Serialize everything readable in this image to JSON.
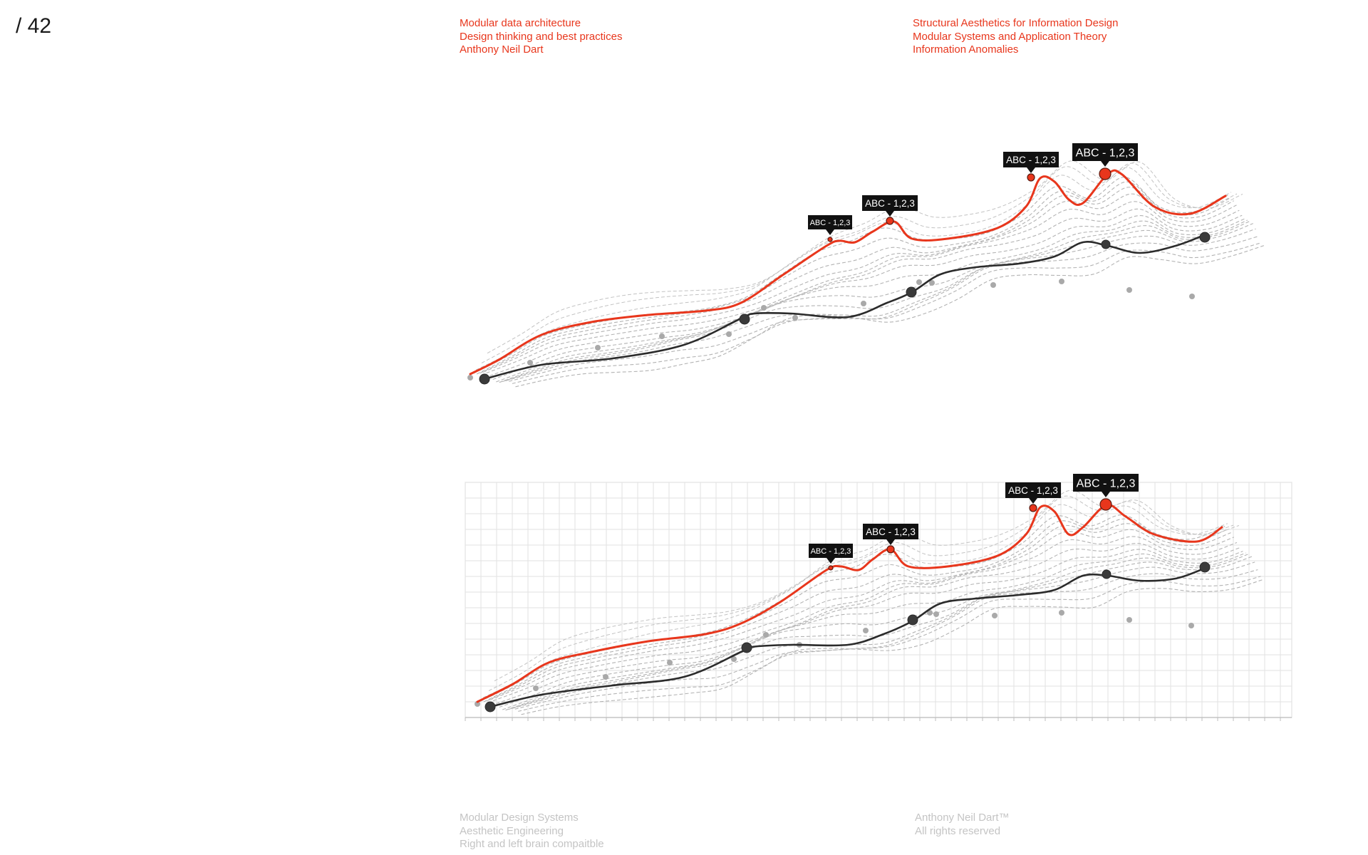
{
  "page": {
    "number": "/ 42"
  },
  "header_left": [
    "Modular data architecture",
    "Design thinking and best practices",
    "Anthony Neil Dart"
  ],
  "header_right": [
    "Structural Aesthetics for Information Design",
    "Modular Systems and Application Theory",
    "Information Anomalies"
  ],
  "footer_left": [
    "Modular Design Systems",
    "Aesthetic Engineering",
    "Right and left brain compaitble"
  ],
  "footer_right": [
    "Anthony Neil Dart™",
    "All rights reserved"
  ],
  "colors": {
    "highlight": "#e8361c",
    "primary": "#2b2b2b",
    "secondary": "#a9a9a9",
    "grid": "#e2e2e2"
  },
  "chart_data": [
    {
      "type": "line",
      "grid": false,
      "series": [
        {
          "role": "highlight",
          "values": [
            0.0,
            1.3,
            1.8,
            2.2,
            2.7,
            4.9,
            5.3,
            8.1,
            6.5,
            5.1
          ]
        },
        {
          "role": "primary",
          "values": [
            0.0,
            0.4,
            1.0,
            2.0,
            1.8,
            3.1,
            4.1,
            5.0,
            4.3,
            5.3
          ]
        }
      ],
      "annotations": [
        {
          "label": "ABC - 1,2,3",
          "series": "highlight",
          "point": "p1",
          "size": "small"
        },
        {
          "label": "ABC - 1,2,3",
          "series": "highlight",
          "point": "p2",
          "size": "medium"
        },
        {
          "label": "ABC - 1,2,3",
          "series": "highlight",
          "point": "p3",
          "size": "medium"
        },
        {
          "label": "ABC - 1,2,3",
          "series": "highlight",
          "point": "p4",
          "size": "large"
        }
      ]
    },
    {
      "type": "line",
      "grid": true,
      "series": [
        {
          "role": "highlight",
          "values": [
            0.0,
            1.3,
            1.8,
            2.2,
            2.7,
            4.9,
            5.3,
            8.1,
            6.5,
            5.1
          ]
        },
        {
          "role": "primary",
          "values": [
            0.0,
            0.4,
            1.0,
            2.0,
            1.8,
            3.1,
            4.1,
            5.0,
            4.3,
            5.3
          ]
        }
      ],
      "annotations": [
        {
          "label": "ABC - 1,2,3",
          "series": "highlight",
          "point": "p1",
          "size": "small"
        },
        {
          "label": "ABC - 1,2,3",
          "series": "highlight",
          "point": "p2",
          "size": "medium"
        },
        {
          "label": "ABC - 1,2,3",
          "series": "highlight",
          "point": "p3",
          "size": "medium"
        },
        {
          "label": "ABC - 1,2,3",
          "series": "highlight",
          "point": "p4",
          "size": "large"
        }
      ]
    }
  ]
}
